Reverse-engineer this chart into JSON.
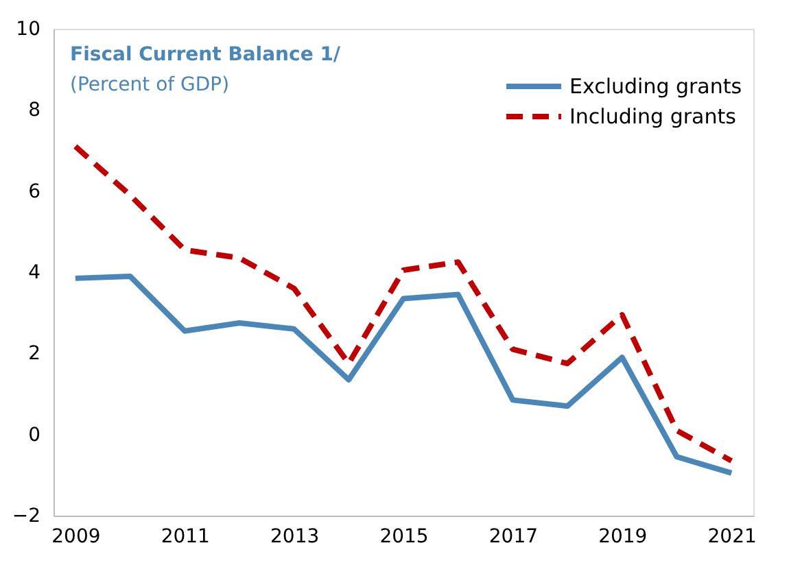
{
  "chart_data": {
    "type": "line",
    "title": "Fiscal Current Balance 1/",
    "subtitle": "(Percent of GDP)",
    "x": [
      2009,
      2010,
      2011,
      2012,
      2013,
      2014,
      2015,
      2016,
      2017,
      2018,
      2019,
      2020,
      2021
    ],
    "series": [
      {
        "name": "Excluding grants",
        "color": "#4a86b8",
        "line_style": "solid",
        "values": [
          3.85,
          3.9,
          2.55,
          2.75,
          2.6,
          1.35,
          3.35,
          3.45,
          0.85,
          0.7,
          1.9,
          -0.55,
          -0.95
        ]
      },
      {
        "name": "Including grants",
        "color": "#c00000",
        "line_style": "dashed",
        "values": [
          7.1,
          5.9,
          4.55,
          4.35,
          3.6,
          1.75,
          4.05,
          4.25,
          2.1,
          1.75,
          2.95,
          0.1,
          -0.65
        ]
      }
    ],
    "xlim": [
      2008.6,
      2021.4
    ],
    "xticks": [
      2009,
      2011,
      2013,
      2015,
      2017,
      2019,
      2021
    ],
    "ylim": [
      -2,
      10
    ],
    "yticks": [
      -2,
      0,
      2,
      4,
      6,
      8,
      10
    ],
    "grid": false,
    "legend": "top right",
    "marker": "none"
  }
}
